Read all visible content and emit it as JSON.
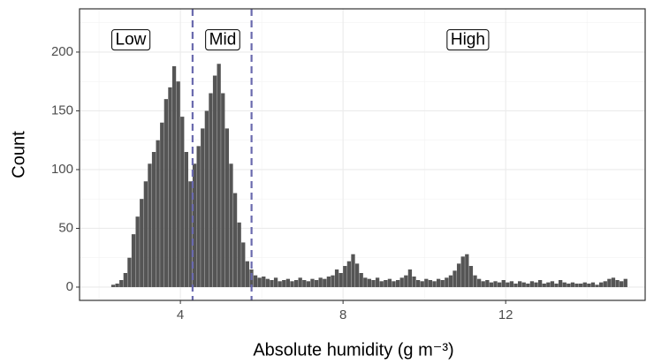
{
  "chart_data": {
    "type": "histogram",
    "x_label": "Absolute humidity (g m⁻³)",
    "y_label": "Count",
    "bins": [
      2.3,
      2.4,
      2.5,
      2.6,
      2.7,
      2.8,
      2.9,
      3.0,
      3.1,
      3.2,
      3.3,
      3.4,
      3.5,
      3.6,
      3.7,
      3.8,
      3.9,
      4.0,
      4.1,
      4.2,
      4.3,
      4.4,
      4.5,
      4.6,
      4.7,
      4.8,
      4.9,
      5.0,
      5.1,
      5.2,
      5.3,
      5.4,
      5.5,
      5.6,
      5.7,
      5.8,
      5.9,
      6.0,
      6.1,
      6.2,
      6.3,
      6.4,
      6.5,
      6.6,
      6.7,
      6.8,
      6.9,
      7.0,
      7.1,
      7.2,
      7.3,
      7.4,
      7.5,
      7.6,
      7.7,
      7.8,
      7.9,
      8.0,
      8.1,
      8.2,
      8.3,
      8.4,
      8.5,
      8.6,
      8.7,
      8.8,
      8.9,
      9.0,
      9.1,
      9.2,
      9.3,
      9.4,
      9.5,
      9.6,
      9.7,
      9.8,
      9.9,
      10.0,
      10.1,
      10.2,
      10.3,
      10.4,
      10.5,
      10.6,
      10.7,
      10.8,
      10.9,
      11.0,
      11.1,
      11.2,
      11.3,
      11.4,
      11.5,
      11.6,
      11.7,
      11.8,
      11.9,
      12.0,
      12.1,
      12.2,
      12.3,
      12.4,
      12.5,
      12.6,
      12.7,
      12.8,
      12.9,
      13.0,
      13.1,
      13.2,
      13.3,
      13.4,
      13.5,
      13.6,
      13.7,
      13.8,
      13.9,
      14.0,
      14.1,
      14.2,
      14.3,
      14.4,
      14.5,
      14.6,
      14.7,
      14.8,
      14.9,
      15.0
    ],
    "counts": [
      2,
      3,
      6,
      12,
      25,
      45,
      60,
      75,
      90,
      105,
      115,
      125,
      140,
      160,
      170,
      188,
      175,
      145,
      115,
      90,
      105,
      120,
      135,
      150,
      165,
      180,
      190,
      165,
      135,
      105,
      80,
      55,
      38,
      22,
      15,
      10,
      8,
      9,
      7,
      6,
      8,
      5,
      6,
      7,
      5,
      6,
      8,
      6,
      5,
      7,
      6,
      8,
      7,
      9,
      10,
      15,
      12,
      18,
      22,
      28,
      20,
      12,
      8,
      7,
      6,
      8,
      5,
      6,
      7,
      5,
      6,
      8,
      10,
      15,
      9,
      6,
      5,
      7,
      6,
      5,
      7,
      6,
      8,
      10,
      14,
      20,
      26,
      28,
      18,
      10,
      7,
      5,
      6,
      4,
      5,
      4,
      6,
      4,
      5,
      3,
      5,
      4,
      3,
      5,
      4,
      6,
      3,
      4,
      5,
      3,
      6,
      4,
      3,
      4,
      3,
      3,
      4,
      3,
      4,
      2,
      4,
      5,
      7,
      8,
      6,
      5,
      7
    ],
    "color": "#555555",
    "xlim": [
      1.52,
      15.43
    ],
    "ylim": [
      -11.3,
      236.8
    ],
    "xticks": [
      4,
      8,
      12
    ],
    "yticks": [
      0,
      50,
      100,
      150,
      200
    ],
    "x_minor_ticks": [
      2,
      6,
      10,
      14
    ],
    "y_minor_ticks": [
      25,
      75,
      125,
      175,
      225
    ],
    "grid": true,
    "vlines": {
      "values": [
        4.3,
        5.75
      ],
      "color": "#6a6aae",
      "style": "dashed"
    },
    "annotations": [
      {
        "text": "Low",
        "x": 2.78,
        "y": 210
      },
      {
        "text": "Mid",
        "x": 5.04,
        "y": 210
      },
      {
        "text": "High",
        "x": 11.07,
        "y": 210
      }
    ]
  }
}
